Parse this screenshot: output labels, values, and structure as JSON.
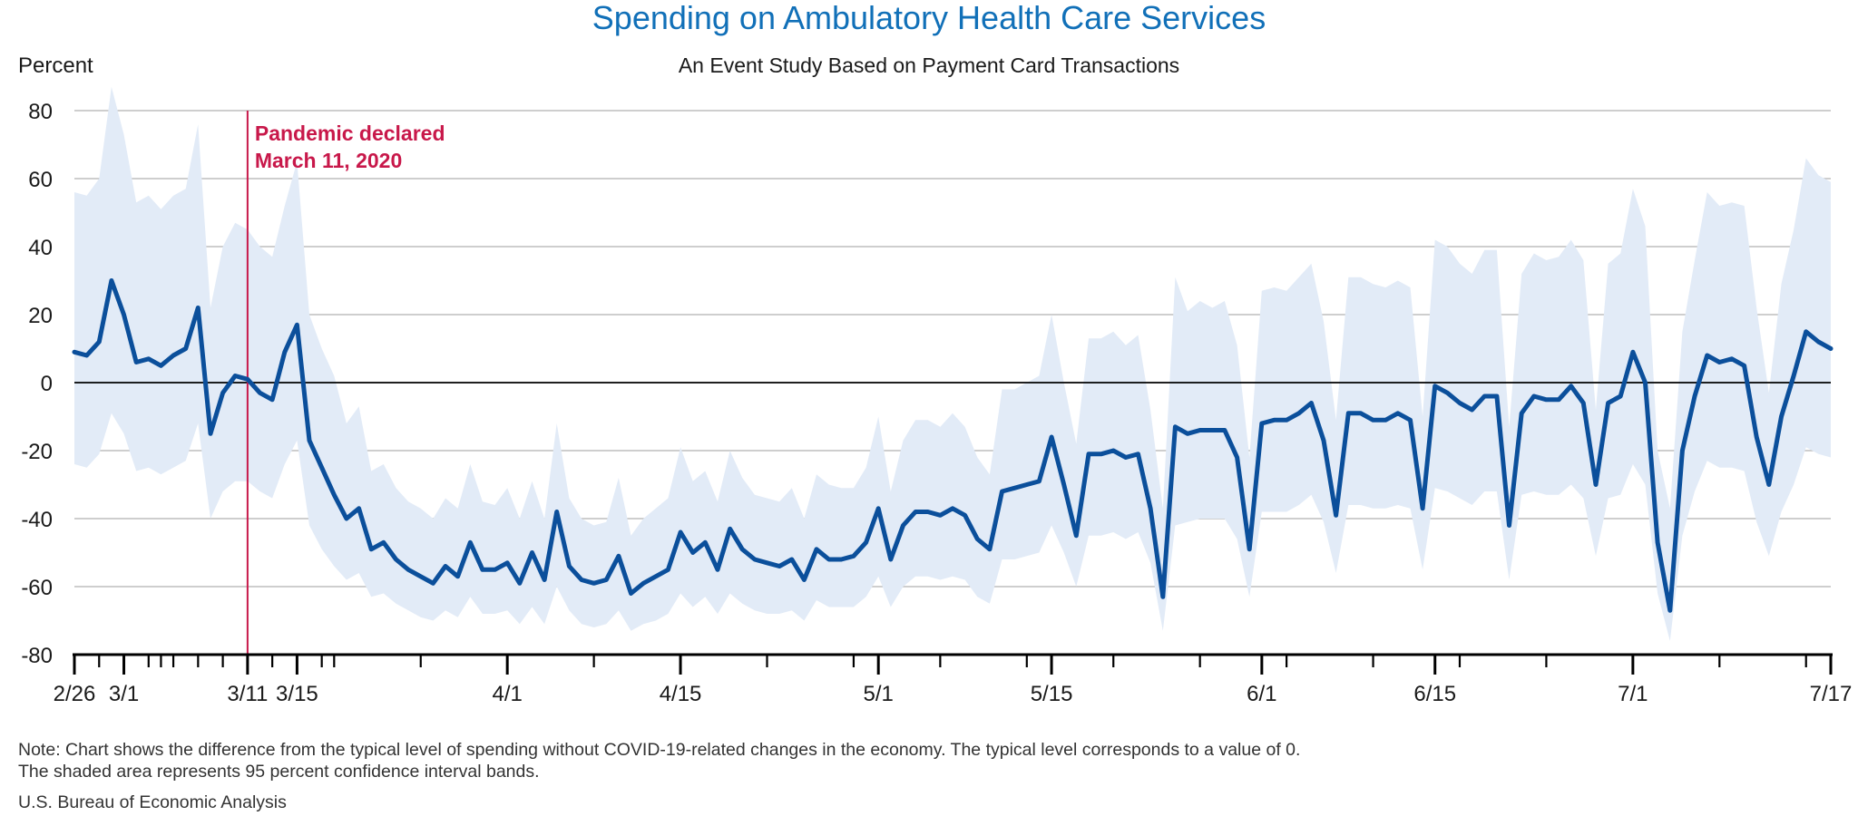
{
  "chart_data": {
    "type": "line",
    "title": "Spending on Ambulatory Health Care Services",
    "subtitle": "An Event Study Based on Payment Card Transactions",
    "ylabel": "Percent",
    "xlabel": "",
    "ylim": [
      -80,
      80
    ],
    "yticks": [
      80,
      60,
      40,
      20,
      0,
      -20,
      -40,
      -60,
      -80
    ],
    "grid": true,
    "x_start": "2020-02-26",
    "x_end": "2020-07-17",
    "xtick_labels": [
      {
        "date": "2020-02-26",
        "label": "2/26"
      },
      {
        "date": "2020-03-01",
        "label": "3/1"
      },
      {
        "date": "2020-03-11",
        "label": "3/11"
      },
      {
        "date": "2020-03-15",
        "label": "3/15"
      },
      {
        "date": "2020-04-01",
        "label": "4/1"
      },
      {
        "date": "2020-04-15",
        "label": "4/15"
      },
      {
        "date": "2020-05-01",
        "label": "5/1"
      },
      {
        "date": "2020-05-15",
        "label": "5/15"
      },
      {
        "date": "2020-06-01",
        "label": "6/1"
      },
      {
        "date": "2020-06-15",
        "label": "6/15"
      },
      {
        "date": "2020-07-01",
        "label": "7/1"
      },
      {
        "date": "2020-07-17",
        "label": "7/17"
      }
    ],
    "annotation": {
      "date": "2020-03-11",
      "lines": [
        "Pandemic declared",
        "March 11, 2020"
      ]
    },
    "series": [
      {
        "values": [
          9,
          8,
          12,
          30,
          20,
          6,
          7,
          5,
          8,
          10,
          22,
          -15,
          -3,
          2,
          1,
          -3,
          -5,
          9,
          17,
          -17,
          -25,
          -33,
          -40,
          -37,
          -49,
          -47,
          -52,
          -55,
          -57,
          -59,
          -54,
          -57,
          -47,
          -55,
          -55,
          -53,
          -59,
          -50,
          -58,
          -38,
          -54,
          -58,
          -59,
          -58,
          -51,
          -62,
          -59,
          -57,
          -55,
          -44,
          -50,
          -47,
          -55,
          -43,
          -49,
          -52,
          -53,
          -54,
          -52,
          -58,
          -49,
          -52,
          -52,
          -51,
          -47,
          -37,
          -52,
          -42,
          -38,
          -38,
          -39,
          -37,
          -39,
          -46,
          -49,
          -32,
          -31,
          -30,
          -29,
          -16,
          -30,
          -45,
          -21,
          -21,
          -20,
          -22,
          -21,
          -37,
          -63,
          -13,
          -15,
          -14,
          -14,
          -14,
          -22,
          -49,
          -12,
          -11,
          -11,
          -9,
          -6,
          -17,
          -39,
          -9,
          -9,
          -11,
          -11,
          -9,
          -11,
          -37,
          -1,
          -3,
          -6,
          -8,
          -4,
          -4,
          -42,
          -9,
          -4,
          -5,
          -5,
          -1,
          -6,
          -30,
          -6,
          -4,
          9,
          0,
          -47,
          -67,
          -20,
          -4,
          8,
          6,
          7,
          5,
          -16,
          -30,
          -10,
          2,
          15,
          12,
          10
        ]
      }
    ],
    "ci_upper": [
      56,
      55,
      60,
      87,
      73,
      53,
      55,
      51,
      55,
      57,
      76,
      22,
      40,
      47,
      45,
      40,
      37,
      52,
      65,
      20,
      10,
      2,
      -12,
      -7,
      -26,
      -24,
      -31,
      -35,
      -37,
      -40,
      -34,
      -37,
      -24,
      -35,
      -36,
      -31,
      -40,
      -29,
      -40,
      -12,
      -34,
      -40,
      -42,
      -41,
      -28,
      -45,
      -40,
      -37,
      -34,
      -19,
      -29,
      -26,
      -35,
      -20,
      -28,
      -33,
      -34,
      -35,
      -31,
      -40,
      -27,
      -30,
      -31,
      -31,
      -25,
      -10,
      -32,
      -17,
      -11,
      -11,
      -13,
      -9,
      -13,
      -22,
      -27,
      -2,
      -2,
      0,
      2,
      20,
      0,
      -18,
      13,
      13,
      15,
      11,
      14,
      -8,
      -37,
      31,
      21,
      24,
      22,
      24,
      11,
      -22,
      27,
      28,
      27,
      31,
      35,
      18,
      -11,
      31,
      31,
      29,
      28,
      30,
      28,
      -10,
      42,
      40,
      35,
      32,
      39,
      39,
      -13,
      32,
      38,
      36,
      37,
      42,
      36,
      -8,
      35,
      38,
      57,
      46,
      -20,
      -37,
      15,
      36,
      56,
      52,
      53,
      52,
      22,
      -3,
      29,
      45,
      66,
      61,
      59
    ],
    "ci_lower": [
      -24,
      -25,
      -21,
      -9,
      -15,
      -26,
      -25,
      -27,
      -25,
      -23,
      -12,
      -40,
      -32,
      -29,
      -29,
      -32,
      -34,
      -24,
      -17,
      -42,
      -49,
      -54,
      -58,
      -56,
      -63,
      -62,
      -65,
      -67,
      -69,
      -70,
      -67,
      -69,
      -63,
      -68,
      -68,
      -67,
      -71,
      -66,
      -71,
      -60,
      -67,
      -71,
      -72,
      -71,
      -67,
      -73,
      -71,
      -70,
      -68,
      -62,
      -66,
      -63,
      -68,
      -62,
      -65,
      -67,
      -68,
      -68,
      -67,
      -70,
      -64,
      -66,
      -66,
      -66,
      -63,
      -57,
      -66,
      -60,
      -57,
      -57,
      -58,
      -57,
      -58,
      -63,
      -65,
      -52,
      -52,
      -51,
      -50,
      -42,
      -50,
      -60,
      -45,
      -45,
      -44,
      -46,
      -44,
      -53,
      -73,
      -42,
      -41,
      -40,
      -40,
      -40,
      -46,
      -63,
      -38,
      -38,
      -38,
      -36,
      -33,
      -41,
      -56,
      -36,
      -36,
      -37,
      -37,
      -36,
      -37,
      -55,
      -31,
      -32,
      -34,
      -36,
      -32,
      -32,
      -58,
      -33,
      -32,
      -33,
      -33,
      -30,
      -34,
      -51,
      -34,
      -33,
      -24,
      -30,
      -62,
      -76,
      -45,
      -32,
      -23,
      -25,
      -25,
      -26,
      -41,
      -51,
      -38,
      -30,
      -19,
      -21,
      -22
    ],
    "colors": {
      "line": "#0b4f9b",
      "band": "#e2ebf7",
      "grid": "#bdbdbd",
      "zero_line": "#000000",
      "annotation": "#c8184a",
      "title": "#1170b8"
    }
  },
  "note_lines": [
    "Note: Chart shows the difference from the typical level of spending without COVID-19-related changes in the economy. The typical level corresponds to a value of 0.",
    "The shaded area represents 95 percent confidence interval bands."
  ],
  "source": "U.S. Bureau of Economic Analysis"
}
